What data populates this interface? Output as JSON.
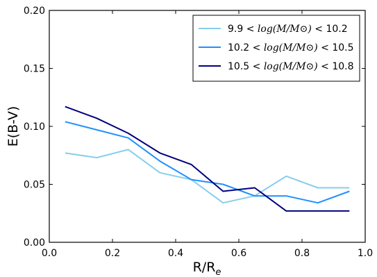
{
  "chart_data": {
    "type": "line",
    "title": "",
    "xlabel": "R/R_e",
    "ylabel": "E(B-V)",
    "xlim": [
      0.0,
      1.0
    ],
    "ylim": [
      0.0,
      0.2
    ],
    "x_ticks": [
      0.0,
      0.2,
      0.4,
      0.6,
      0.8,
      1.0
    ],
    "x_tick_labels": [
      "0.0",
      "0.2",
      "0.4",
      "0.6",
      "0.8",
      "1.0"
    ],
    "y_ticks": [
      0.0,
      0.05,
      0.1,
      0.15,
      0.2
    ],
    "y_tick_labels": [
      "0.00",
      "0.05",
      "0.10",
      "0.15",
      "0.20"
    ],
    "grid": false,
    "legend_position": "top-right",
    "x": [
      0.05,
      0.15,
      0.25,
      0.35,
      0.45,
      0.55,
      0.65,
      0.75,
      0.85,
      0.95
    ],
    "series": [
      {
        "name": "9.9 < log(M/M⊙) < 10.2",
        "color": "#87ceeb",
        "values": [
          0.077,
          0.073,
          0.08,
          0.06,
          0.054,
          0.034,
          0.04,
          0.057,
          0.047,
          0.047
        ]
      },
      {
        "name": "10.2 < log(M/M⊙) < 10.5",
        "color": "#1e90ff",
        "values": [
          0.104,
          0.097,
          0.09,
          0.07,
          0.054,
          0.05,
          0.04,
          0.04,
          0.034,
          0.044
        ]
      },
      {
        "name": "10.5 < log(M/M⊙) < 10.8",
        "color": "#000080",
        "values": [
          0.117,
          0.107,
          0.094,
          0.077,
          0.067,
          0.044,
          0.047,
          0.027,
          0.027,
          0.027
        ]
      }
    ]
  }
}
